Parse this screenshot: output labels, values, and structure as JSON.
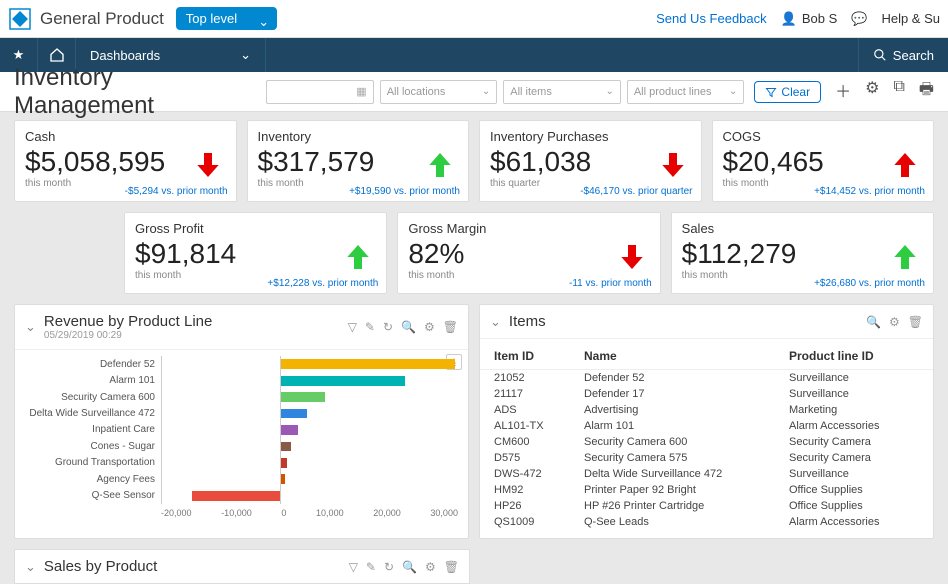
{
  "brand": "General Product",
  "level_selector": "Top level",
  "feedback": "Send Us Feedback",
  "user_name": "Bob S",
  "help": "Help & Su",
  "nav_dashboards": "Dashboards",
  "nav_search": "Search",
  "page_title": "Inventory Management",
  "filters": {
    "locations_placeholder": "All locations",
    "items_placeholder": "All items",
    "lines_placeholder": "All product lines"
  },
  "clear_btn": "Clear",
  "kpi": [
    {
      "title": "Cash",
      "value": "$5,058,595",
      "sub": "this month",
      "delta": "-$5,294 vs. prior month",
      "dir": "down-red"
    },
    {
      "title": "Inventory",
      "value": "$317,579",
      "sub": "this month",
      "delta": "+$19,590 vs. prior month",
      "dir": "up-green"
    },
    {
      "title": "Inventory Purchases",
      "value": "$61,038",
      "sub": "this quarter",
      "delta": "-$46,170 vs. prior quarter",
      "dir": "down-red"
    },
    {
      "title": "COGS",
      "value": "$20,465",
      "sub": "this month",
      "delta": "+$14,452 vs. prior month",
      "dir": "up-red"
    },
    {
      "title": "Gross Profit",
      "value": "$91,814",
      "sub": "this month",
      "delta": "+$12,228 vs. prior month",
      "dir": "up-green"
    },
    {
      "title": "Gross Margin",
      "value": "82%",
      "sub": "this month",
      "delta": "-11 vs. prior month",
      "dir": "down-red"
    },
    {
      "title": "Sales",
      "value": "$112,279",
      "sub": "this month",
      "delta": "+$26,680 vs. prior month",
      "dir": "up-green"
    }
  ],
  "revenue_panel": {
    "title": "Revenue by Product Line",
    "timestamp": "05/29/2019 00:29",
    "xaxis": [
      "-20,000",
      "-10,000",
      "0",
      "10,000",
      "20,000",
      "30,000"
    ],
    "xmin": -20000,
    "xmax": 30000,
    "rows": [
      {
        "label": "Defender 52",
        "value": 29500,
        "color": "#f5b301"
      },
      {
        "label": "Alarm 101",
        "value": 21000,
        "color": "#00b3b3"
      },
      {
        "label": "Security Camera 600",
        "value": 7500,
        "color": "#66cc66"
      },
      {
        "label": "Delta Wide Surveillance 472",
        "value": 4500,
        "color": "#2e86de"
      },
      {
        "label": "Inpatient Care",
        "value": 3000,
        "color": "#9b59b6"
      },
      {
        "label": "Cones - Sugar",
        "value": 1800,
        "color": "#8a5a44"
      },
      {
        "label": "Ground Transportation",
        "value": 1200,
        "color": "#c0392b"
      },
      {
        "label": "Agency Fees",
        "value": 800,
        "color": "#d35400"
      },
      {
        "label": "Q-See Sensor",
        "value": -15000,
        "color": "#e74c3c"
      }
    ]
  },
  "items_panel": {
    "title": "Items",
    "columns": [
      "Item ID",
      "Name",
      "Product line ID"
    ],
    "rows": [
      [
        "21052",
        "Defender 52",
        "Surveillance"
      ],
      [
        "21117",
        "Defender 17",
        "Surveillance"
      ],
      [
        "ADS",
        "Advertising",
        "Marketing"
      ],
      [
        "AL101-TX",
        "Alarm 101",
        "Alarm Accessories"
      ],
      [
        "CM600",
        "Security Camera 600",
        "Security Camera"
      ],
      [
        "D575",
        "Security Camera 575",
        "Security Camera"
      ],
      [
        "DWS-472",
        "Delta Wide Surveillance 472",
        "Surveillance"
      ],
      [
        "HM92",
        "Printer Paper 92 Bright",
        "Office Supplies"
      ],
      [
        "HP26",
        "HP #26 Printer Cartridge",
        "Office Supplies"
      ],
      [
        "QS1009",
        "Q-See Leads",
        "Alarm Accessories"
      ]
    ]
  },
  "sales_panel_title": "Sales by Product"
}
